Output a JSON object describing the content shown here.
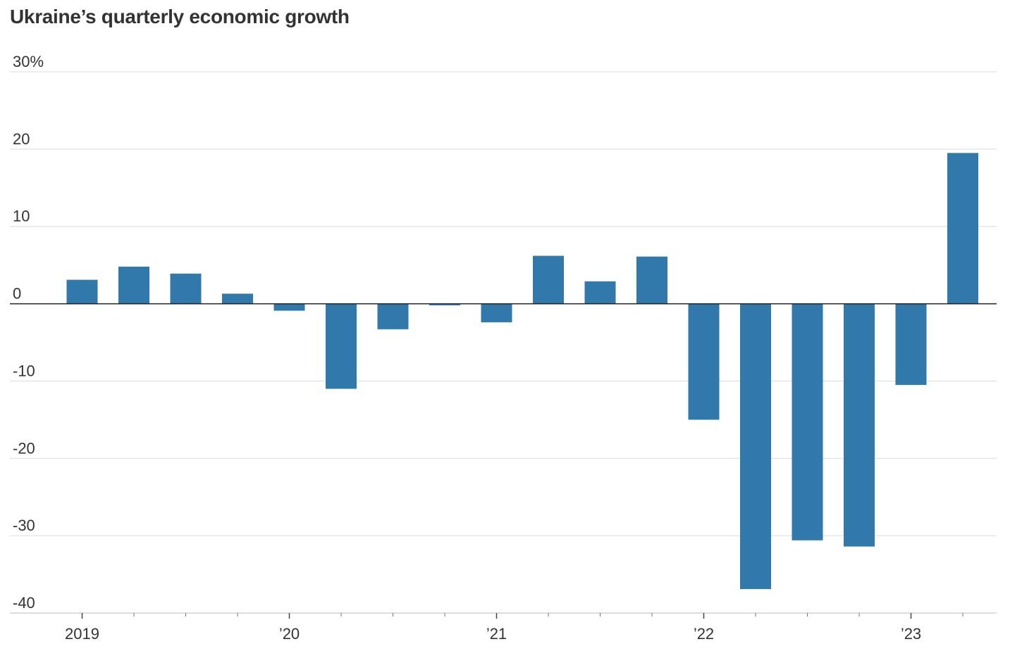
{
  "chart_data": {
    "type": "bar",
    "title": "Ukraine’s quarterly economic growth",
    "xlabel": "",
    "ylabel": "",
    "categories": [
      "2019 Q1",
      "2019 Q2",
      "2019 Q3",
      "2019 Q4",
      "2020 Q1",
      "2020 Q2",
      "2020 Q3",
      "2020 Q4",
      "2021 Q1",
      "2021 Q2",
      "2021 Q3",
      "2021 Q4",
      "2022 Q1",
      "2022 Q2",
      "2022 Q3",
      "2022 Q4",
      "2023 Q1",
      "2023 Q2"
    ],
    "values": [
      3.1,
      4.8,
      3.9,
      1.3,
      -0.9,
      -11.0,
      -3.3,
      -0.2,
      -2.4,
      6.2,
      2.9,
      6.1,
      -15.0,
      -36.9,
      -30.6,
      -31.4,
      -10.5,
      19.5
    ],
    "ylim": [
      -40,
      30
    ],
    "yticks": [
      -40,
      -30,
      -20,
      -10,
      0,
      10,
      20,
      30
    ],
    "ytick_labels": [
      "-40",
      "-30",
      "-20",
      "-10",
      "0",
      "10",
      "20",
      "30%"
    ],
    "xtick_labels": [
      {
        "index": 0,
        "label": "2019"
      },
      {
        "index": 4,
        "label": "’20"
      },
      {
        "index": 8,
        "label": "’21"
      },
      {
        "index": 12,
        "label": "’22"
      },
      {
        "index": 16,
        "label": "’23"
      }
    ],
    "bar_color": "#3179aa",
    "grid": true,
    "legend": "none"
  }
}
